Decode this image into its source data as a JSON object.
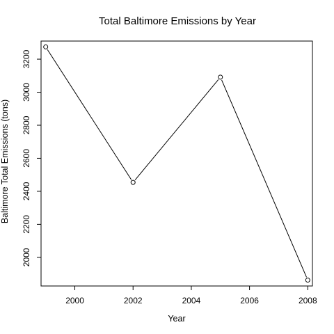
{
  "chart_data": {
    "type": "line",
    "title": "Total Baltimore Emissions by Year",
    "xlabel": "Year",
    "ylabel": "Baltimore Total Emissions (tons)",
    "x": [
      1999,
      2002,
      2005,
      2008
    ],
    "series": [
      {
        "values": [
          3274.18,
          2453.92,
          3091.35,
          1862.28
        ]
      }
    ],
    "xlim": [
      1998.84,
      2008.16
    ],
    "ylim": [
      1826.7,
      3309.7
    ],
    "xticks": [
      2000,
      2002,
      2004,
      2006,
      2008
    ],
    "yticks": [
      2000,
      2200,
      2400,
      2600,
      2800,
      3000,
      3200
    ],
    "grid": false,
    "legend": "none",
    "colors": {
      "line": "#000000",
      "marker": "#000000"
    }
  }
}
